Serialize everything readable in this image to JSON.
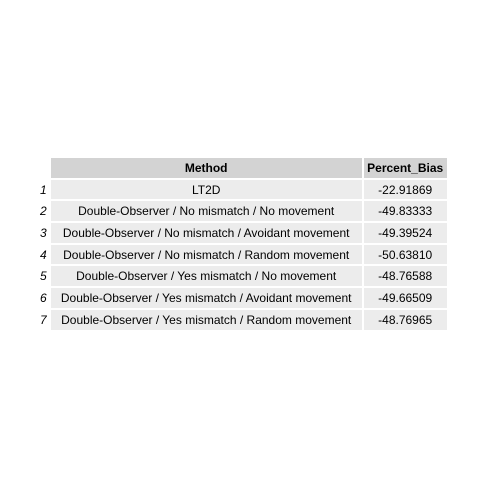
{
  "chart_data": {
    "type": "table",
    "columns": [
      "Method",
      "Percent_Bias"
    ],
    "rows": [
      {
        "index": "1",
        "method": "LT2D",
        "percent_bias": "-22.91869"
      },
      {
        "index": "2",
        "method": "Double-Observer / No mismatch / No movement",
        "percent_bias": "-49.83333"
      },
      {
        "index": "3",
        "method": "Double-Observer / No mismatch / Avoidant movement",
        "percent_bias": "-49.39524"
      },
      {
        "index": "4",
        "method": "Double-Observer / No mismatch / Random movement",
        "percent_bias": "-50.63810"
      },
      {
        "index": "5",
        "method": "Double-Observer / Yes mismatch / No movement",
        "percent_bias": "-48.76588"
      },
      {
        "index": "6",
        "method": "Double-Observer / Yes mismatch / Avoidant movement",
        "percent_bias": "-49.66509"
      },
      {
        "index": "7",
        "method": "Double-Observer / Yes mismatch / Random movement",
        "percent_bias": "-48.76965"
      }
    ]
  },
  "colors": {
    "header_bg": "#d3d3d3",
    "cell_bg": "#ececec",
    "page_bg": "#ffffff"
  }
}
